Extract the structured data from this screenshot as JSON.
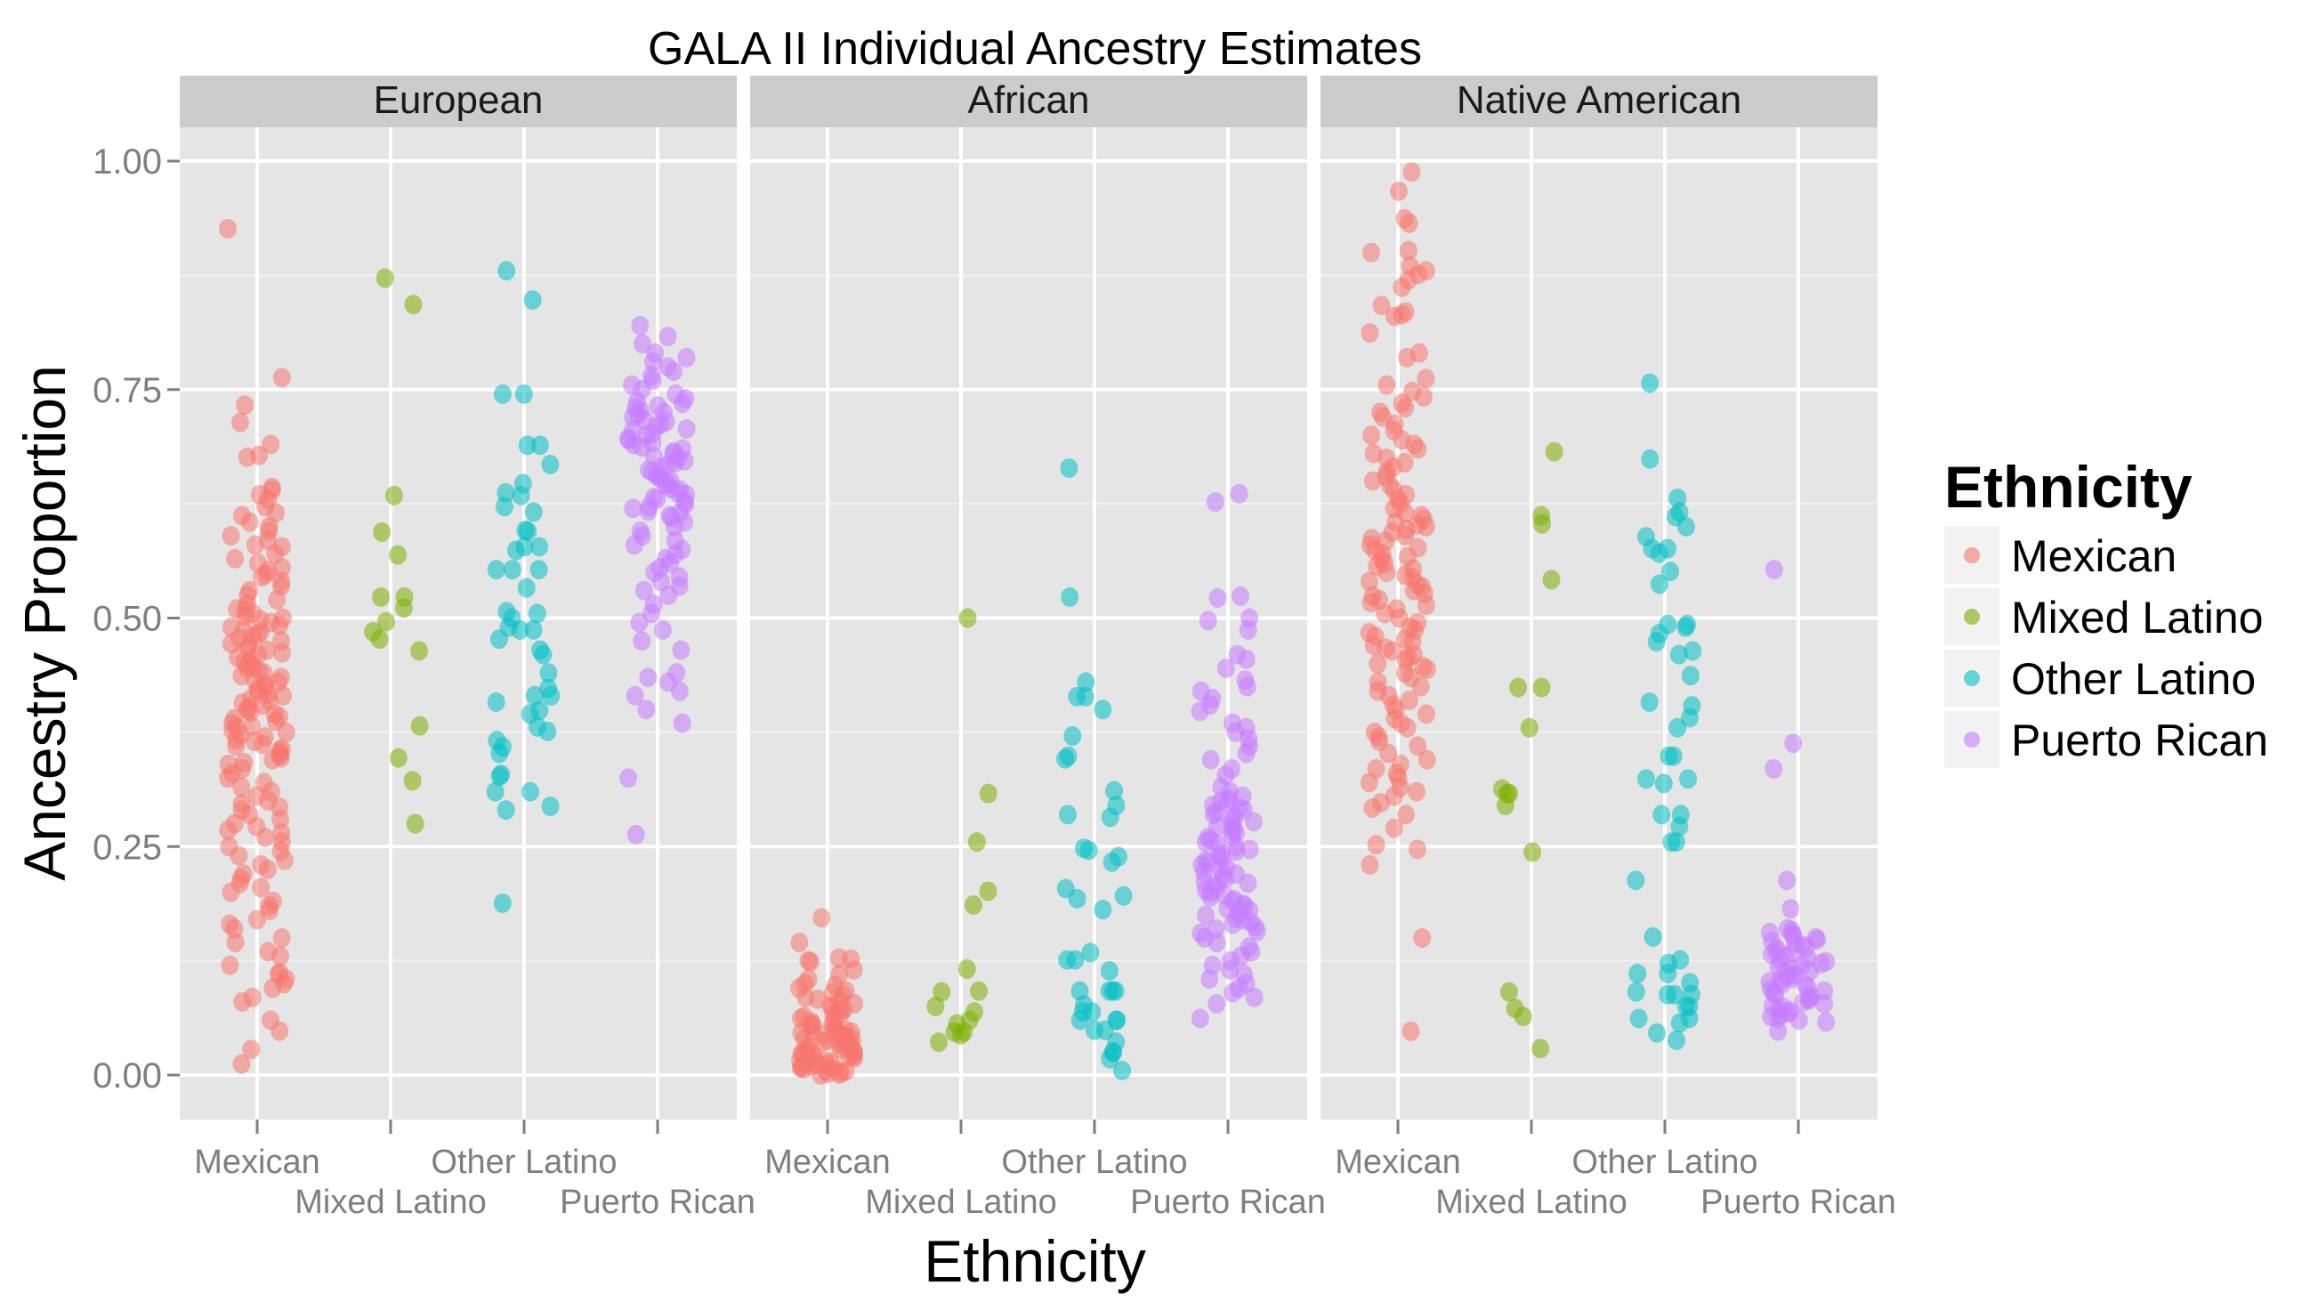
{
  "chart_data": {
    "type": "scatter",
    "subtype": "faceted jitter strip plot",
    "title": "GALA II Individual Ancestry Estimates",
    "xlabel": "Ethnicity",
    "ylabel": "Ancestry Proportion",
    "ylim": [
      -0.05,
      1.04
    ],
    "yticks": [
      0.0,
      0.25,
      0.5,
      0.75,
      1.0
    ],
    "ytick_labels": [
      "0.00",
      "0.25",
      "0.50",
      "0.75",
      "1.00"
    ],
    "categories": [
      "Mexican",
      "Mixed Latino",
      "Other Latino",
      "Puerto Rican"
    ],
    "grid": true,
    "legend": {
      "title": "Ethnicity",
      "position": "right",
      "entries": [
        {
          "label": "Mexican",
          "color": "#F8766D"
        },
        {
          "label": "Mixed Latino",
          "color": "#7CAE00"
        },
        {
          "label": "Other Latino",
          "color": "#00BFC4"
        },
        {
          "label": "Puerto Rican",
          "color": "#C77CFF"
        }
      ]
    },
    "point_alpha": 0.55,
    "panels": [
      {
        "name": "European",
        "groups": [
          {
            "category": "Mexican",
            "values": [
              0.926,
              0.763,
              0.733,
              0.714,
              0.69,
              0.678,
              0.676,
              0.643,
              0.64,
              0.635,
              0.63,
              0.622,
              0.615,
              0.612,
              0.605,
              0.6,
              0.595,
              0.59,
              0.585,
              0.58,
              0.578,
              0.57,
              0.565,
              0.56,
              0.555,
              0.552,
              0.548,
              0.545,
              0.54,
              0.535,
              0.53,
              0.525,
              0.52,
              0.515,
              0.51,
              0.508,
              0.505,
              0.502,
              0.5,
              0.498,
              0.495,
              0.492,
              0.49,
              0.487,
              0.485,
              0.482,
              0.48,
              0.478,
              0.475,
              0.472,
              0.47,
              0.468,
              0.465,
              0.462,
              0.46,
              0.457,
              0.455,
              0.452,
              0.45,
              0.447,
              0.445,
              0.442,
              0.44,
              0.437,
              0.435,
              0.432,
              0.43,
              0.427,
              0.425,
              0.422,
              0.42,
              0.417,
              0.415,
              0.412,
              0.41,
              0.407,
              0.405,
              0.402,
              0.4,
              0.397,
              0.395,
              0.392,
              0.39,
              0.387,
              0.385,
              0.382,
              0.38,
              0.377,
              0.375,
              0.372,
              0.37,
              0.367,
              0.365,
              0.362,
              0.36,
              0.357,
              0.355,
              0.352,
              0.35,
              0.347,
              0.345,
              0.342,
              0.34,
              0.335,
              0.33,
              0.325,
              0.32,
              0.315,
              0.31,
              0.305,
              0.3,
              0.297,
              0.293,
              0.29,
              0.285,
              0.28,
              0.275,
              0.272,
              0.268,
              0.265,
              0.26,
              0.255,
              0.25,
              0.245,
              0.24,
              0.235,
              0.23,
              0.225,
              0.22,
              0.215,
              0.21,
              0.205,
              0.2,
              0.19,
              0.185,
              0.18,
              0.17,
              0.165,
              0.16,
              0.15,
              0.145,
              0.135,
              0.13,
              0.12,
              0.112,
              0.11,
              0.105,
              0.1,
              0.095,
              0.085,
              0.08,
              0.06,
              0.048,
              0.028,
              0.012
            ]
          },
          {
            "category": "Mixed Latino",
            "values": [
              0.872,
              0.843,
              0.634,
              0.594,
              0.569,
              0.523,
              0.523,
              0.511,
              0.496,
              0.485,
              0.477,
              0.464,
              0.382,
              0.347,
              0.322,
              0.275
            ]
          },
          {
            "category": "Other Latino",
            "values": [
              0.88,
              0.848,
              0.745,
              0.745,
              0.689,
              0.689,
              0.668,
              0.647,
              0.637,
              0.634,
              0.622,
              0.616,
              0.596,
              0.595,
              0.578,
              0.578,
              0.574,
              0.553,
              0.553,
              0.553,
              0.533,
              0.507,
              0.505,
              0.5,
              0.49,
              0.487,
              0.487,
              0.477,
              0.465,
              0.46,
              0.44,
              0.423,
              0.415,
              0.415,
              0.408,
              0.399,
              0.395,
              0.381,
              0.376,
              0.366,
              0.359,
              0.352,
              0.329,
              0.327,
              0.31,
              0.31,
              0.294,
              0.29,
              0.188
            ]
          },
          {
            "category": "Puerto Rican",
            "values": [
              0.82,
              0.808,
              0.8,
              0.79,
              0.785,
              0.78,
              0.775,
              0.77,
              0.765,
              0.76,
              0.755,
              0.75,
              0.745,
              0.74,
              0.737,
              0.735,
              0.732,
              0.73,
              0.727,
              0.725,
              0.722,
              0.72,
              0.717,
              0.715,
              0.712,
              0.71,
              0.707,
              0.705,
              0.702,
              0.7,
              0.697,
              0.695,
              0.692,
              0.69,
              0.687,
              0.685,
              0.682,
              0.68,
              0.677,
              0.675,
              0.672,
              0.67,
              0.667,
              0.665,
              0.662,
              0.66,
              0.657,
              0.655,
              0.652,
              0.65,
              0.647,
              0.645,
              0.642,
              0.64,
              0.637,
              0.635,
              0.632,
              0.63,
              0.627,
              0.625,
              0.622,
              0.62,
              0.617,
              0.615,
              0.612,
              0.61,
              0.605,
              0.6,
              0.595,
              0.59,
              0.585,
              0.58,
              0.575,
              0.57,
              0.565,
              0.56,
              0.555,
              0.55,
              0.545,
              0.54,
              0.535,
              0.53,
              0.525,
              0.515,
              0.505,
              0.495,
              0.487,
              0.475,
              0.465,
              0.44,
              0.435,
              0.43,
              0.42,
              0.415,
              0.4,
              0.385,
              0.325,
              0.263
            ]
          }
        ]
      },
      {
        "name": "African",
        "groups": [
          {
            "category": "Mexican",
            "values": [
              0.172,
              0.145,
              0.128,
              0.127,
              0.125,
              0.124,
              0.115,
              0.11,
              0.105,
              0.1,
              0.098,
              0.095,
              0.092,
              0.09,
              0.088,
              0.085,
              0.083,
              0.08,
              0.078,
              0.076,
              0.074,
              0.072,
              0.07,
              0.068,
              0.066,
              0.064,
              0.062,
              0.06,
              0.058,
              0.056,
              0.055,
              0.054,
              0.052,
              0.05,
              0.049,
              0.048,
              0.047,
              0.046,
              0.045,
              0.044,
              0.043,
              0.042,
              0.041,
              0.04,
              0.039,
              0.038,
              0.037,
              0.036,
              0.035,
              0.034,
              0.033,
              0.032,
              0.031,
              0.03,
              0.029,
              0.028,
              0.027,
              0.026,
              0.025,
              0.024,
              0.023,
              0.022,
              0.021,
              0.02,
              0.019,
              0.018,
              0.017,
              0.016,
              0.015,
              0.014,
              0.013,
              0.012,
              0.011,
              0.01,
              0.009,
              0.008,
              0.007,
              0.006,
              0.005,
              0.004,
              0.003,
              0.002,
              0.001,
              0.0
            ]
          },
          {
            "category": "Mixed Latino",
            "values": [
              0.5,
              0.308,
              0.255,
              0.201,
              0.186,
              0.116,
              0.092,
              0.091,
              0.075,
              0.069,
              0.06,
              0.056,
              0.047,
              0.047,
              0.044,
              0.036
            ]
          },
          {
            "category": "Other Latino",
            "values": [
              0.664,
              0.523,
              0.43,
              0.414,
              0.414,
              0.4,
              0.371,
              0.349,
              0.346,
              0.311,
              0.295,
              0.285,
              0.282,
              0.248,
              0.246,
              0.239,
              0.233,
              0.204,
              0.196,
              0.193,
              0.181,
              0.134,
              0.126,
              0.126,
              0.114,
              0.092,
              0.092,
              0.092,
              0.092,
              0.077,
              0.069,
              0.069,
              0.06,
              0.06,
              0.06,
              0.049,
              0.049,
              0.036,
              0.025,
              0.025,
              0.018,
              0.005
            ]
          },
          {
            "category": "Puerto Rican",
            "values": [
              0.636,
              0.627,
              0.524,
              0.522,
              0.5,
              0.497,
              0.487,
              0.46,
              0.455,
              0.445,
              0.432,
              0.425,
              0.42,
              0.412,
              0.405,
              0.398,
              0.385,
              0.38,
              0.375,
              0.368,
              0.36,
              0.352,
              0.345,
              0.335,
              0.328,
              0.315,
              0.31,
              0.305,
              0.302,
              0.3,
              0.298,
              0.295,
              0.292,
              0.29,
              0.288,
              0.285,
              0.282,
              0.28,
              0.277,
              0.275,
              0.272,
              0.27,
              0.267,
              0.265,
              0.262,
              0.26,
              0.257,
              0.255,
              0.252,
              0.25,
              0.247,
              0.245,
              0.242,
              0.24,
              0.237,
              0.235,
              0.232,
              0.23,
              0.227,
              0.225,
              0.222,
              0.22,
              0.217,
              0.215,
              0.212,
              0.21,
              0.207,
              0.205,
              0.202,
              0.2,
              0.197,
              0.195,
              0.192,
              0.19,
              0.187,
              0.185,
              0.182,
              0.18,
              0.177,
              0.175,
              0.172,
              0.17,
              0.167,
              0.165,
              0.162,
              0.16,
              0.157,
              0.155,
              0.15,
              0.145,
              0.14,
              0.135,
              0.13,
              0.125,
              0.12,
              0.115,
              0.11,
              0.105,
              0.1,
              0.095,
              0.09,
              0.085,
              0.078,
              0.062
            ]
          }
        ]
      },
      {
        "name": "Native American",
        "groups": [
          {
            "category": "Mexican",
            "values": [
              0.988,
              0.967,
              0.937,
              0.932,
              0.902,
              0.9,
              0.885,
              0.88,
              0.876,
              0.87,
              0.862,
              0.842,
              0.835,
              0.832,
              0.83,
              0.812,
              0.79,
              0.785,
              0.762,
              0.755,
              0.748,
              0.742,
              0.735,
              0.73,
              0.725,
              0.72,
              0.712,
              0.705,
              0.7,
              0.695,
              0.69,
              0.685,
              0.68,
              0.675,
              0.67,
              0.665,
              0.66,
              0.655,
              0.65,
              0.645,
              0.64,
              0.635,
              0.63,
              0.625,
              0.62,
              0.615,
              0.612,
              0.608,
              0.605,
              0.602,
              0.6,
              0.597,
              0.594,
              0.59,
              0.587,
              0.584,
              0.58,
              0.577,
              0.574,
              0.57,
              0.567,
              0.564,
              0.56,
              0.557,
              0.554,
              0.55,
              0.547,
              0.544,
              0.54,
              0.537,
              0.534,
              0.53,
              0.527,
              0.524,
              0.52,
              0.517,
              0.514,
              0.51,
              0.505,
              0.5,
              0.495,
              0.49,
              0.487,
              0.484,
              0.48,
              0.477,
              0.474,
              0.47,
              0.467,
              0.464,
              0.46,
              0.457,
              0.454,
              0.45,
              0.447,
              0.444,
              0.44,
              0.435,
              0.43,
              0.425,
              0.42,
              0.415,
              0.41,
              0.405,
              0.4,
              0.395,
              0.39,
              0.385,
              0.38,
              0.375,
              0.37,
              0.365,
              0.36,
              0.352,
              0.345,
              0.34,
              0.335,
              0.33,
              0.325,
              0.32,
              0.315,
              0.31,
              0.305,
              0.298,
              0.292,
              0.285,
              0.27,
              0.252,
              0.247,
              0.23,
              0.15,
              0.048
            ]
          },
          {
            "category": "Mixed Latino",
            "values": [
              0.682,
              0.612,
              0.603,
              0.542,
              0.424,
              0.424,
              0.38,
              0.313,
              0.308,
              0.308,
              0.295,
              0.244,
              0.091,
              0.073,
              0.064,
              0.029
            ]
          },
          {
            "category": "Other Latino",
            "values": [
              0.757,
              0.674,
              0.631,
              0.616,
              0.611,
              0.6,
              0.589,
              0.576,
              0.576,
              0.571,
              0.551,
              0.537,
              0.493,
              0.493,
              0.49,
              0.483,
              0.474,
              0.464,
              0.46,
              0.437,
              0.408,
              0.404,
              0.391,
              0.38,
              0.349,
              0.349,
              0.324,
              0.324,
              0.319,
              0.285,
              0.285,
              0.272,
              0.255,
              0.255,
              0.213,
              0.151,
              0.126,
              0.122,
              0.111,
              0.111,
              0.101,
              0.091,
              0.088,
              0.088,
              0.088,
              0.075,
              0.075,
              0.062,
              0.062,
              0.057,
              0.046,
              0.038
            ]
          },
          {
            "category": "Puerto Rican",
            "values": [
              0.553,
              0.363,
              0.335,
              0.213,
              0.182,
              0.16,
              0.158,
              0.156,
              0.154,
              0.152,
              0.15,
              0.148,
              0.146,
              0.144,
              0.142,
              0.14,
              0.138,
              0.136,
              0.134,
              0.132,
              0.13,
              0.128,
              0.126,
              0.124,
              0.122,
              0.12,
              0.118,
              0.116,
              0.114,
              0.112,
              0.11,
              0.108,
              0.106,
              0.104,
              0.102,
              0.1,
              0.098,
              0.096,
              0.094,
              0.092,
              0.09,
              0.088,
              0.086,
              0.084,
              0.082,
              0.08,
              0.078,
              0.076,
              0.074,
              0.072,
              0.07,
              0.068,
              0.066,
              0.064,
              0.062,
              0.06,
              0.058,
              0.048
            ]
          }
        ]
      }
    ]
  }
}
